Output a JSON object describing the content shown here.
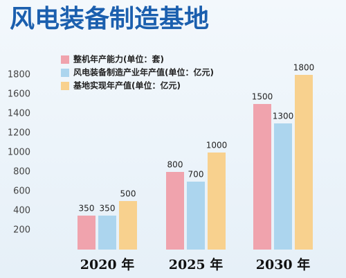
{
  "chart_data": {
    "type": "bar",
    "title": "风电装备制造基地",
    "categories": [
      "2020 年",
      "2025 年",
      "2030 年"
    ],
    "series": [
      {
        "name": "整机年产能力(单位：套)",
        "color": "#f0a3ad",
        "values": [
          350,
          800,
          1500
        ]
      },
      {
        "name": "风电装备制造产业年产值(单位：亿元)",
        "color": "#acd5ee",
        "values": [
          350,
          700,
          1300
        ]
      },
      {
        "name": "基地实现年产值(单位：亿元)",
        "color": "#f8d18e",
        "values": [
          500,
          1000,
          1800
        ]
      }
    ],
    "ylim": [
      0,
      1900
    ],
    "yticks": [
      200,
      400,
      600,
      800,
      1000,
      1200,
      1400,
      1600,
      1800
    ],
    "legend": "top-left"
  }
}
